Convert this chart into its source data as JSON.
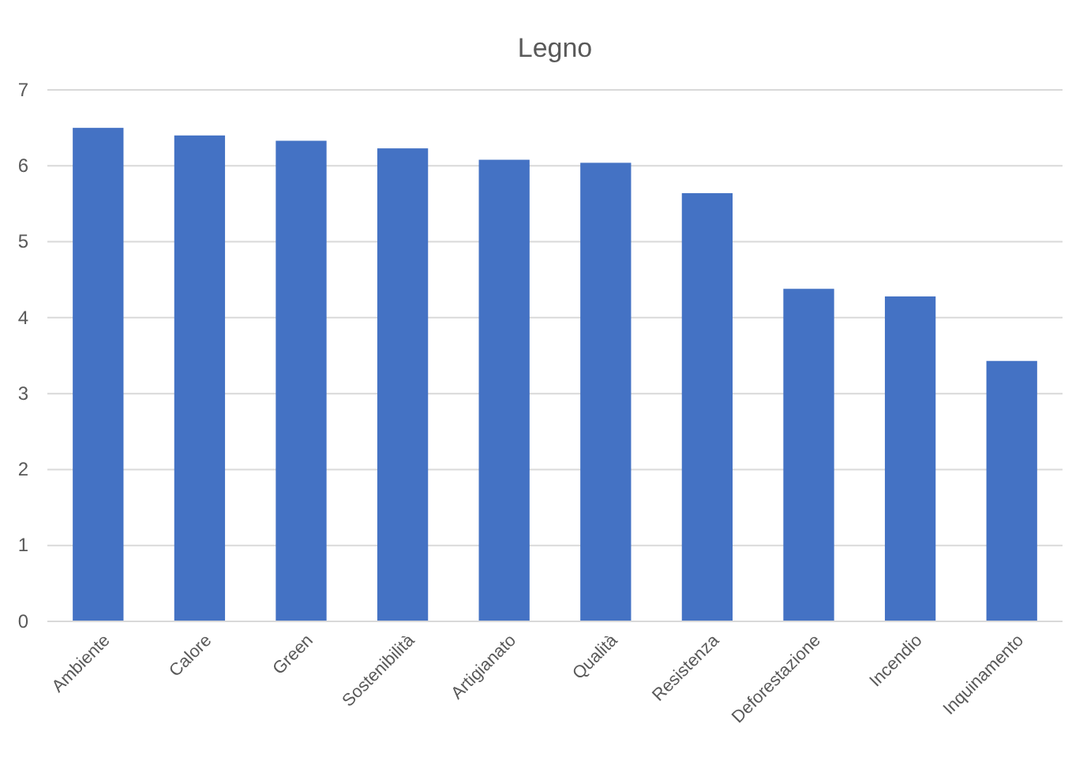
{
  "chart_data": {
    "type": "bar",
    "title": "Legno",
    "categories": [
      "Ambiente",
      "Calore",
      "Green",
      "Sostenibilità",
      "Artigianato",
      "Qualità",
      "Resistenza",
      "Deforestazione",
      "Incendio",
      "Inquinamento"
    ],
    "values": [
      6.5,
      6.4,
      6.33,
      6.23,
      6.08,
      6.04,
      5.64,
      4.38,
      4.28,
      3.43
    ],
    "color": "#4472c4",
    "ylim": [
      0,
      7
    ],
    "yticks": [
      0,
      1,
      2,
      3,
      4,
      5,
      6,
      7
    ],
    "grid": "y"
  }
}
